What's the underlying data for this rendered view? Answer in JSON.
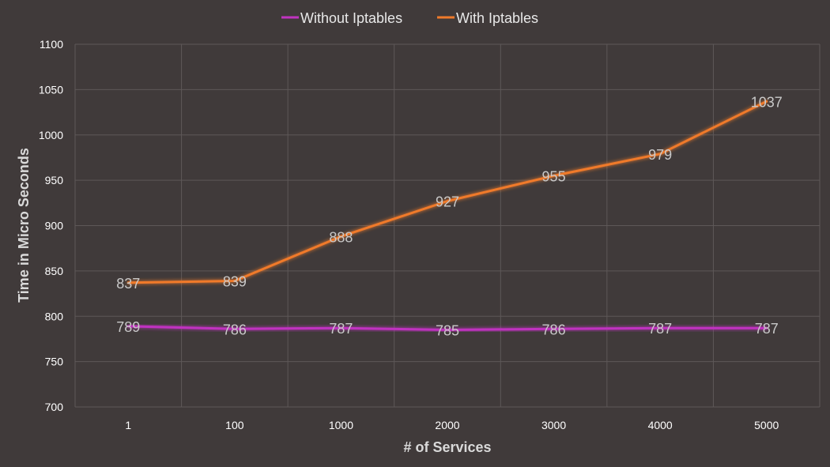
{
  "chart_data": {
    "type": "line",
    "title": "",
    "xlabel": "# of Services",
    "ylabel": "Time in  Micro Seconds",
    "categories": [
      "1",
      "100",
      "1000",
      "2000",
      "3000",
      "4000",
      "5000"
    ],
    "ylim": [
      700,
      1100
    ],
    "yticks": [
      700,
      750,
      800,
      850,
      900,
      950,
      1000,
      1050,
      1100
    ],
    "grid": true,
    "legend_position": "top",
    "series": [
      {
        "name": "Without Iptables",
        "color": "#c033c0",
        "values": [
          789,
          786,
          787,
          785,
          786,
          787,
          787
        ]
      },
      {
        "name": "With Iptables",
        "color": "#f07a2a",
        "values": [
          837,
          839,
          888,
          927,
          955,
          979,
          1037
        ]
      }
    ]
  }
}
